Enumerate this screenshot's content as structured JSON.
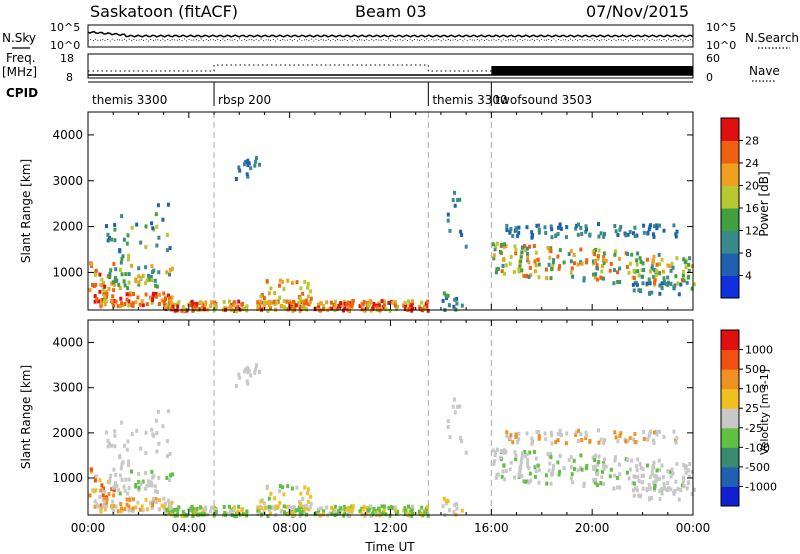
{
  "header": {
    "station": "Saskatoon (fitACF)",
    "beam": "Beam 03",
    "date": "07/Nov/2015"
  },
  "side_labels": {
    "nsky": "N.Sky",
    "freq_line1": "Freq.",
    "freq_line2": "[MHz]",
    "cpid": "CPID",
    "nsearch": "N.Search",
    "nave": "Nave"
  },
  "noise_axis": {
    "left_ticks": [
      "10^5",
      "10^0"
    ],
    "right_ticks": [
      "10^5",
      "10^0"
    ]
  },
  "freq_axis": {
    "left_ticks": [
      "18",
      "8"
    ],
    "right_ticks": [
      "60",
      "0"
    ]
  },
  "cpid_segments": [
    {
      "label": "themis 3300",
      "start_hour": 0,
      "end_hour": 5
    },
    {
      "label": "rbsp 200",
      "start_hour": 5,
      "end_hour": 13.5
    },
    {
      "label": "themis 3300",
      "start_hour": 13.5,
      "end_hour": 16
    },
    {
      "label": "twofsound 3503",
      "start_hour": 16,
      "end_hour": 24
    }
  ],
  "chart_data": [
    {
      "type": "heatmap",
      "name": "power",
      "ylabel": "Slant Range [km]",
      "xlabel": "",
      "xlim": [
        0,
        24
      ],
      "ylim": [
        180,
        4500
      ],
      "y_ticks": [
        "1000",
        "2000",
        "3000",
        "4000"
      ],
      "colorbar": {
        "label": "Power [dB]",
        "ticks": [
          "4",
          "8",
          "12",
          "16",
          "20",
          "24",
          "28"
        ],
        "range": [
          0,
          32
        ],
        "colors": [
          "#1030e0",
          "#2060b0",
          "#3a8a8a",
          "#40a040",
          "#b8c830",
          "#f0a020",
          "#f06010",
          "#e01010"
        ]
      }
    },
    {
      "type": "heatmap",
      "name": "velocity",
      "ylabel": "Slant Range [km]",
      "xlabel": "Time UT",
      "xlim": [
        0,
        24
      ],
      "ylim": [
        180,
        4500
      ],
      "y_ticks": [
        "1000",
        "2000",
        "3000",
        "4000"
      ],
      "x_ticks": [
        "00:00",
        "04:00",
        "08:00",
        "12:00",
        "16:00",
        "20:00",
        "00:00"
      ],
      "colorbar": {
        "label": "Velocity [m s-1]",
        "ticks": [
          "1000",
          "500",
          "100",
          "25",
          "-25",
          "-100",
          "-500",
          "-1000"
        ],
        "colors": [
          "#1020d0",
          "#2060b0",
          "#3a8a70",
          "#60c040",
          "#c8c8c8",
          "#f0c020",
          "#f09020",
          "#f05010",
          "#e01010"
        ]
      }
    }
  ]
}
